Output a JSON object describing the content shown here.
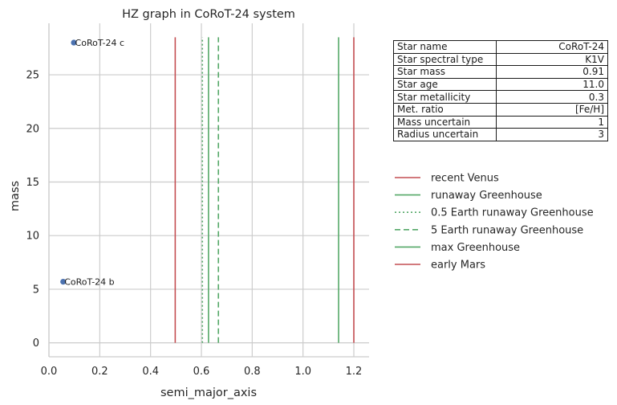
{
  "chart_data": {
    "type": "scatter",
    "title": "HZ graph in CoRoT-24 system",
    "xlabel": "semi_major_axis",
    "ylabel": "mass",
    "xlim": [
      0.0,
      1.26
    ],
    "ylim": [
      -1.3,
      29.8
    ],
    "xticks": [
      0.0,
      0.2,
      0.4,
      0.6,
      0.8,
      1.0,
      1.2
    ],
    "xtick_labels": [
      "0.0",
      "0.2",
      "0.4",
      "0.6",
      "0.8",
      "1.0",
      "1.2"
    ],
    "yticks": [
      0,
      5,
      10,
      15,
      20,
      25
    ],
    "ytick_labels": [
      "0",
      "5",
      "10",
      "15",
      "20",
      "25"
    ],
    "grid": true,
    "legend_position": "right",
    "points": [
      {
        "label": "CoRoT-24 c",
        "x": 0.098,
        "y": 28.0
      },
      {
        "label": "CoRoT-24 b",
        "x": 0.056,
        "y": 5.7
      }
    ],
    "point_color": "#4c72b0",
    "vlines": [
      {
        "name": "recent Venus",
        "x": 0.497,
        "color": "#c44e52",
        "style": "solid"
      },
      {
        "name": "runaway Greenhouse",
        "x": 0.628,
        "color": "#55a868",
        "style": "solid"
      },
      {
        "name": "0.5 Earth runaway Greenhouse",
        "x": 0.604,
        "color": "#55a868",
        "style": "dotted"
      },
      {
        "name": "5 Earth runaway Greenhouse",
        "x": 0.667,
        "color": "#55a868",
        "style": "dashed"
      },
      {
        "name": "max Greenhouse",
        "x": 1.14,
        "color": "#55a868",
        "style": "solid"
      },
      {
        "name": "early Mars",
        "x": 1.2,
        "color": "#c44e52",
        "style": "solid"
      }
    ],
    "vline_range": [
      0,
      28.5
    ]
  },
  "table": [
    {
      "key": "Star name",
      "value": "CoRoT-24"
    },
    {
      "key": "Star spectral type",
      "value": "K1V"
    },
    {
      "key": "Star mass",
      "value": "0.91"
    },
    {
      "key": "Star age",
      "value": "11.0"
    },
    {
      "key": "Star metallicity",
      "value": "0.3"
    },
    {
      "key": "Met. ratio",
      "value": "[Fe/H]"
    },
    {
      "key": "Mass uncertain",
      "value": "1"
    },
    {
      "key": "Radius uncertain",
      "value": "3"
    }
  ]
}
